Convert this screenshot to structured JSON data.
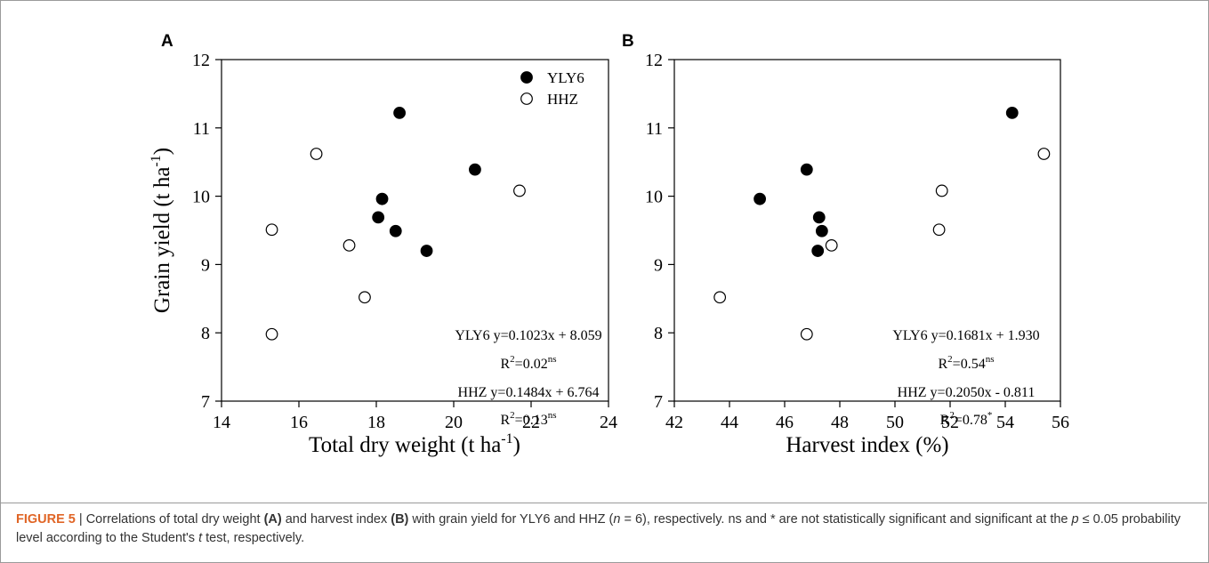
{
  "chart_data": [
    {
      "type": "scatter",
      "panel": "A",
      "xlabel": "Total dry weight (t ha",
      "xlabel_sup": "-1",
      "xlabel_end": ")",
      "ylabel": "Grain yield (t ha",
      "ylabel_sup": "-1",
      "ylabel_end": ")",
      "xlim": [
        14,
        24
      ],
      "ylim": [
        7,
        12
      ],
      "xticks": [
        14,
        16,
        18,
        20,
        22,
        24
      ],
      "yticks": [
        7,
        8,
        9,
        10,
        11,
        12
      ],
      "legend": {
        "placement": "top-right",
        "entries": [
          {
            "name": "YLY6",
            "marker": "filled-circle"
          },
          {
            "name": "HHZ",
            "marker": "open-circle"
          }
        ]
      },
      "series": [
        {
          "name": "YLY6",
          "marker": "filled",
          "points": [
            [
              18.6,
              11.22
            ],
            [
              20.55,
              10.39
            ],
            [
              18.15,
              9.96
            ],
            [
              18.05,
              9.69
            ],
            [
              18.5,
              9.49
            ],
            [
              19.3,
              9.2
            ]
          ]
        },
        {
          "name": "HHZ",
          "marker": "open",
          "points": [
            [
              16.45,
              10.62
            ],
            [
              21.7,
              10.08
            ],
            [
              15.3,
              9.51
            ],
            [
              17.3,
              9.28
            ],
            [
              17.7,
              8.52
            ],
            [
              15.3,
              7.98
            ]
          ]
        }
      ],
      "annotations": [
        {
          "main": "YLY6  y=0.1023x + 8.059"
        },
        {
          "main": "R",
          "sup1": "2",
          "mid": "=0.02",
          "sup2": "ns"
        },
        {
          "main": "HHZ  y=0.1484x + 6.764"
        },
        {
          "main": "R",
          "sup1": "2",
          "mid": "=0.13",
          "sup2": "ns"
        }
      ]
    },
    {
      "type": "scatter",
      "panel": "B",
      "xlabel": "Harvest index (%)",
      "xlim": [
        42,
        56
      ],
      "ylim": [
        7,
        12
      ],
      "xticks": [
        42,
        44,
        46,
        48,
        50,
        52,
        54,
        56
      ],
      "yticks": [
        7,
        8,
        9,
        10,
        11,
        12
      ],
      "series": [
        {
          "name": "YLY6",
          "marker": "filled",
          "points": [
            [
              54.25,
              11.22
            ],
            [
              46.8,
              10.39
            ],
            [
              45.1,
              9.96
            ],
            [
              47.25,
              9.69
            ],
            [
              47.35,
              9.49
            ],
            [
              47.2,
              9.2
            ]
          ]
        },
        {
          "name": "HHZ",
          "marker": "open",
          "points": [
            [
              55.4,
              10.62
            ],
            [
              51.7,
              10.08
            ],
            [
              51.6,
              9.51
            ],
            [
              47.7,
              9.28
            ],
            [
              43.65,
              8.52
            ],
            [
              46.8,
              7.98
            ]
          ]
        }
      ],
      "annotations": [
        {
          "main": "YLY6  y=0.1681x + 1.930"
        },
        {
          "main": "R",
          "sup1": "2",
          "mid": "=0.54",
          "sup2": "ns"
        },
        {
          "main": "HHZ  y=0.2050x - 0.811"
        },
        {
          "main": "R",
          "sup1": "2",
          "mid": "=0.78",
          "sup2": "*"
        }
      ]
    }
  ],
  "caption": {
    "label": "FIGURE 5",
    "separator": " | ",
    "t1": "Correlations of total dry weight ",
    "b1": "(A)",
    "t2": " and harvest index ",
    "b2": "(B)",
    "t3": " with grain yield for YLY6 and HHZ (",
    "n_var": "n",
    "t4": " = 6), respectively. ns and * are not statistically significant and significant at the ",
    "p_var": "p",
    "t5": " ≤ 0.05 probability level according to the Student's ",
    "t_var": "t",
    "t6": " test, respectively."
  }
}
